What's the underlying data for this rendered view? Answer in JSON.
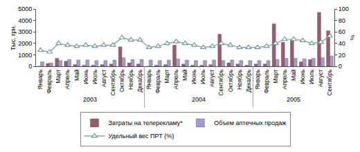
{
  "chart_data": {
    "type": "bar",
    "categories": [
      "Январь",
      "Февраль",
      "Март",
      "Апрель",
      "Май",
      "Июнь",
      "Июль",
      "Август",
      "Сентябрь",
      "Октябрь",
      "Ноябрь",
      "Декабрь",
      "Январь",
      "Февраль",
      "Март",
      "Апрель",
      "Май",
      "Июнь",
      "Июль",
      "Август",
      "Сентябрь",
      "Октябрь",
      "Ноябрь",
      "Декабрь",
      "Январь",
      "Февраль",
      "Март",
      "Апрель",
      "Май",
      "Июнь",
      "Июль",
      "Август",
      "Сентябрь"
    ],
    "x_groups": [
      {
        "label": "2003",
        "count": 12
      },
      {
        "label": "2004",
        "count": 12
      },
      {
        "label": "2005",
        "count": 9
      }
    ],
    "series": [
      {
        "name": "Затраты на телерекламу*",
        "type": "bar",
        "color": "#9e5a6b",
        "axis": "y",
        "values": [
          0,
          250,
          700,
          450,
          150,
          100,
          100,
          150,
          200,
          1700,
          300,
          200,
          0,
          100,
          150,
          1850,
          200,
          100,
          100,
          150,
          2800,
          300,
          200,
          100,
          200,
          200,
          3700,
          2100,
          2300,
          400,
          600,
          4700,
          3100
        ]
      },
      {
        "name": "Объем аптечных продаж",
        "type": "bar",
        "color": "#a09ad8",
        "axis": "y",
        "values": [
          400,
          300,
          500,
          600,
          550,
          550,
          500,
          500,
          550,
          750,
          600,
          600,
          550,
          500,
          550,
          650,
          550,
          500,
          500,
          550,
          500,
          550,
          500,
          500,
          500,
          500,
          600,
          700,
          700,
          650,
          700,
          750,
          900
        ]
      },
      {
        "name": "Удельный вес ПРТ (%)",
        "type": "line",
        "color": "#6f9c9c",
        "axis": "y2",
        "marker": "triangle-up",
        "line_style": "solid",
        "values": [
          28,
          25,
          40,
          37,
          35,
          37,
          35,
          37,
          37,
          50,
          46,
          46,
          33,
          35,
          40,
          43,
          40,
          37,
          33,
          35,
          40,
          37,
          33,
          33,
          33,
          35,
          40,
          47,
          47,
          45,
          40,
          42,
          53
        ]
      }
    ],
    "ylabel": "Тыс. грн.",
    "y2label": "%",
    "ylim": [
      0,
      5000
    ],
    "yticks": [
      0,
      1000,
      2000,
      3000,
      4000,
      5000
    ],
    "y2lim": [
      0,
      100
    ],
    "y2ticks": [
      0,
      20,
      40,
      60,
      80,
      100
    ],
    "legend": "bottom",
    "grid": false
  }
}
